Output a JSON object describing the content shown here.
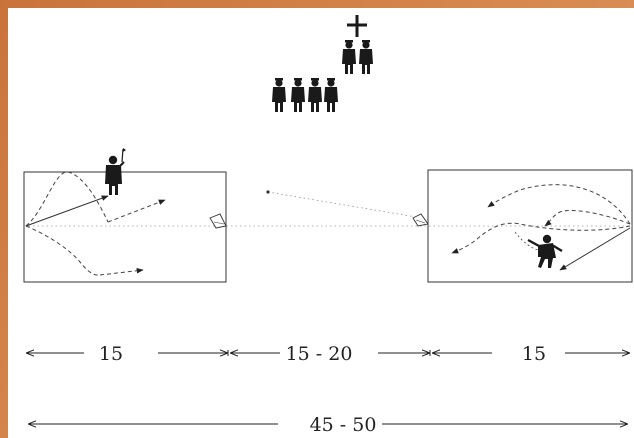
{
  "diagram": {
    "dimensions": {
      "left_zone": "15",
      "middle_zone": "15 - 20",
      "right_zone": "15",
      "total": "45 - 50"
    },
    "icons": [
      "cross-icon",
      "referee-icon",
      "player-icon",
      "team-group-icon",
      "kite-icon"
    ],
    "colors": {
      "frame": "#d7894f",
      "ink": "#222222",
      "figure": "#1a1a1a",
      "dotted": "#8a8a8a"
    }
  }
}
